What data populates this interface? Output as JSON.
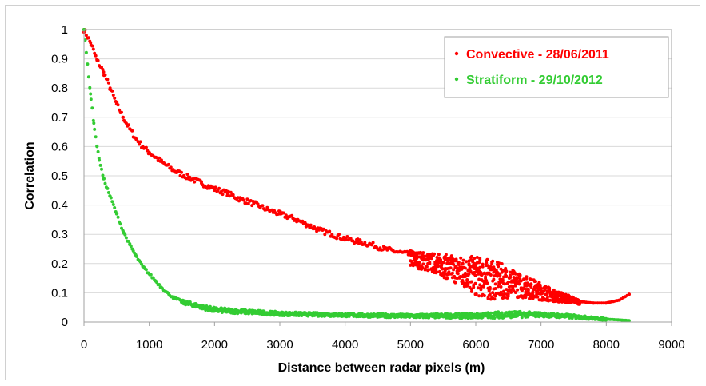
{
  "chart_data": {
    "type": "scatter",
    "title": "",
    "xlabel": "Distance between radar pixels (m)",
    "ylabel": "Correlation",
    "xlim": [
      0,
      9000
    ],
    "ylim": [
      0,
      1
    ],
    "xticks": [
      "0",
      "1000",
      "2000",
      "3000",
      "4000",
      "5000",
      "6000",
      "7000",
      "8000",
      "9000"
    ],
    "yticks": [
      "0",
      "0.1",
      "0.2",
      "0.3",
      "0.4",
      "0.5",
      "0.6",
      "0.7",
      "0.8",
      "0.9",
      "1"
    ],
    "grid": true,
    "legend_position": "top-right",
    "series": [
      {
        "name": "Convective - 28/06/2011",
        "color": "#ff0000",
        "points": [
          [
            0,
            1.0
          ],
          [
            100,
            0.955
          ],
          [
            200,
            0.895
          ],
          [
            300,
            0.855
          ],
          [
            400,
            0.8
          ],
          [
            500,
            0.745
          ],
          [
            600,
            0.7
          ],
          [
            700,
            0.66
          ],
          [
            800,
            0.625
          ],
          [
            900,
            0.6
          ],
          [
            1000,
            0.58
          ],
          [
            1200,
            0.545
          ],
          [
            1400,
            0.515
          ],
          [
            1600,
            0.495
          ],
          [
            1800,
            0.475
          ],
          [
            2000,
            0.455
          ],
          [
            2200,
            0.44
          ],
          [
            2400,
            0.42
          ],
          [
            2600,
            0.405
          ],
          [
            2800,
            0.385
          ],
          [
            3000,
            0.37
          ],
          [
            3200,
            0.355
          ],
          [
            3400,
            0.335
          ],
          [
            3600,
            0.315
          ],
          [
            3800,
            0.3
          ],
          [
            4000,
            0.285
          ],
          [
            4200,
            0.275
          ],
          [
            4400,
            0.265
          ],
          [
            4600,
            0.25
          ],
          [
            4800,
            0.24
          ],
          [
            5000,
            0.23
          ],
          [
            5200,
            0.22
          ],
          [
            5400,
            0.21
          ],
          [
            5600,
            0.2
          ],
          [
            5800,
            0.2
          ],
          [
            6000,
            0.195
          ],
          [
            6200,
            0.185
          ],
          [
            6400,
            0.17
          ],
          [
            6600,
            0.15
          ],
          [
            6800,
            0.13
          ],
          [
            7000,
            0.115
          ],
          [
            7200,
            0.1
          ],
          [
            7400,
            0.085
          ],
          [
            7600,
            0.07
          ],
          [
            7800,
            0.065
          ],
          [
            8000,
            0.065
          ],
          [
            8200,
            0.075
          ],
          [
            8350,
            0.095
          ]
        ],
        "upper": [
          [
            5000,
            0.245
          ],
          [
            5400,
            0.235
          ],
          [
            5800,
            0.225
          ],
          [
            6000,
            0.225
          ],
          [
            6200,
            0.215
          ],
          [
            6400,
            0.2
          ],
          [
            6600,
            0.175
          ],
          [
            6800,
            0.155
          ],
          [
            7000,
            0.135
          ],
          [
            7200,
            0.11
          ],
          [
            7400,
            0.095
          ],
          [
            7600,
            0.075
          ]
        ],
        "lower": [
          [
            5000,
            0.19
          ],
          [
            5400,
            0.165
          ],
          [
            5800,
            0.12
          ],
          [
            6000,
            0.09
          ],
          [
            6200,
            0.075
          ],
          [
            6400,
            0.08
          ],
          [
            6600,
            0.085
          ],
          [
            6800,
            0.08
          ],
          [
            7000,
            0.075
          ],
          [
            7200,
            0.07
          ],
          [
            7400,
            0.065
          ],
          [
            7600,
            0.06
          ]
        ]
      },
      {
        "name": "Stratiform - 29/10/2012",
        "color": "#33cc33",
        "points": [
          [
            0,
            1.0
          ],
          [
            100,
            0.78
          ],
          [
            150,
            0.68
          ],
          [
            200,
            0.6
          ],
          [
            230,
            0.56
          ],
          [
            300,
            0.49
          ],
          [
            400,
            0.43
          ],
          [
            500,
            0.37
          ],
          [
            600,
            0.31
          ],
          [
            700,
            0.265
          ],
          [
            800,
            0.225
          ],
          [
            900,
            0.19
          ],
          [
            1000,
            0.165
          ],
          [
            1100,
            0.14
          ],
          [
            1200,
            0.115
          ],
          [
            1300,
            0.095
          ],
          [
            1400,
            0.08
          ],
          [
            1500,
            0.07
          ],
          [
            1600,
            0.06
          ],
          [
            1800,
            0.05
          ],
          [
            2000,
            0.042
          ],
          [
            2200,
            0.037
          ],
          [
            2500,
            0.033
          ],
          [
            3000,
            0.03
          ],
          [
            3500,
            0.027
          ],
          [
            4000,
            0.025
          ],
          [
            4500,
            0.023
          ],
          [
            5000,
            0.02
          ],
          [
            5500,
            0.02
          ],
          [
            6000,
            0.022
          ],
          [
            6500,
            0.028
          ],
          [
            7000,
            0.028
          ],
          [
            7500,
            0.02
          ],
          [
            8000,
            0.01
          ],
          [
            8350,
            0.005
          ]
        ],
        "upper": [
          [
            1500,
            0.075
          ],
          [
            2000,
            0.05
          ],
          [
            3000,
            0.035
          ],
          [
            4000,
            0.03
          ],
          [
            5000,
            0.027
          ],
          [
            6000,
            0.03
          ],
          [
            6500,
            0.038
          ],
          [
            7000,
            0.033
          ],
          [
            7500,
            0.025
          ],
          [
            8000,
            0.013
          ]
        ],
        "lower": [
          [
            1500,
            0.062
          ],
          [
            2000,
            0.033
          ],
          [
            3000,
            0.022
          ],
          [
            4000,
            0.018
          ],
          [
            5000,
            0.014
          ],
          [
            6000,
            0.013
          ],
          [
            6500,
            0.014
          ],
          [
            7000,
            0.018
          ],
          [
            7500,
            0.012
          ],
          [
            8000,
            0.006
          ]
        ]
      }
    ]
  }
}
